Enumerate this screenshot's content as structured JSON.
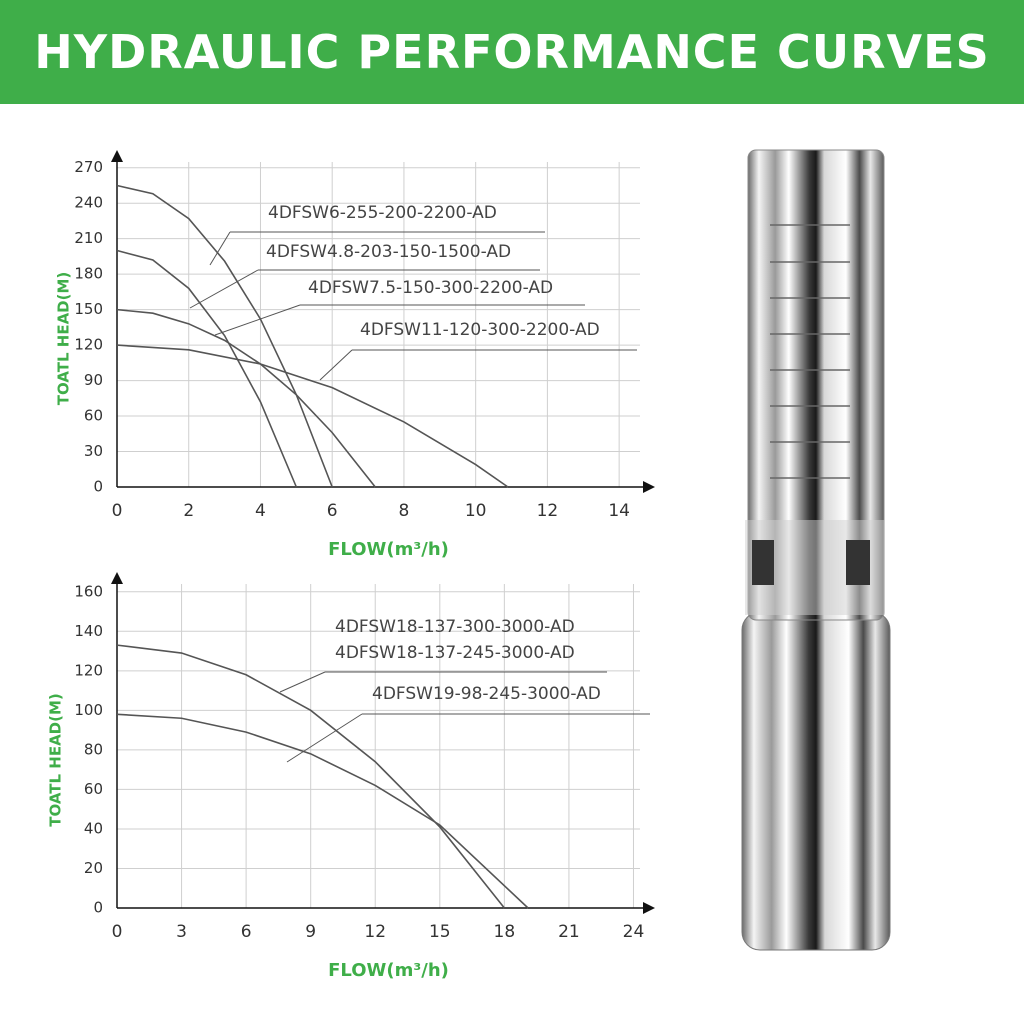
{
  "header": {
    "title": "HYDRAULIC PERFORMANCE CURVES"
  },
  "chart_data": [
    {
      "type": "line",
      "x_label": "FLOW(m³/h)",
      "y_label": "TOATL HEAD(M)",
      "xlim": [
        0,
        15
      ],
      "ylim": [
        0,
        285
      ],
      "xticks": [
        0,
        2,
        4,
        6,
        8,
        10,
        12,
        14
      ],
      "yticks": [
        0,
        30,
        60,
        90,
        120,
        150,
        180,
        210,
        240,
        270
      ],
      "grid": true,
      "series": [
        {
          "name": "4DFSW6-255-200-2200-AD",
          "color": "#555555",
          "x": [
            0,
            1,
            2,
            3,
            4,
            5,
            6
          ],
          "values": [
            255,
            248,
            227,
            191,
            142,
            78,
            0
          ]
        },
        {
          "name": "4DFSW4.8-203-150-1500-AD",
          "color": "#555555",
          "x": [
            0,
            1,
            2,
            3,
            4,
            5
          ],
          "values": [
            200,
            192,
            168,
            128,
            72,
            0
          ]
        },
        {
          "name": "4DFSW7.5-150-300-2200-AD",
          "color": "#555555",
          "x": [
            0,
            1,
            2,
            3,
            4,
            5,
            6,
            7.2
          ],
          "values": [
            150,
            147,
            138,
            124,
            104,
            78,
            46,
            0
          ]
        },
        {
          "name": "4DFSW11-120-300-2200-AD",
          "color": "#555555",
          "x": [
            0,
            2,
            4,
            6,
            8,
            10,
            10.9
          ],
          "values": [
            120,
            116,
            104,
            84,
            55,
            19,
            0
          ]
        }
      ]
    },
    {
      "type": "line",
      "x_label": "FLOW(m³/h)",
      "y_label": "TOATL HEAD(M)",
      "xlim": [
        0,
        25
      ],
      "ylim": [
        0,
        170
      ],
      "xticks": [
        0,
        3,
        6,
        9,
        12,
        15,
        18,
        21,
        24
      ],
      "yticks": [
        0,
        20,
        40,
        60,
        80,
        100,
        120,
        140,
        160
      ],
      "grid": true,
      "annotations": [
        "4DFSW18-137-245-3000-AD"
      ],
      "series": [
        {
          "name": "4DFSW18-137-300-3000-AD",
          "color": "#555555",
          "x": [
            0,
            3,
            6,
            9,
            12,
            15,
            18
          ],
          "values": [
            133,
            129,
            118,
            100,
            74,
            41,
            0
          ]
        },
        {
          "name": "4DFSW19-98-245-3000-AD",
          "color": "#555555",
          "x": [
            0,
            3,
            6,
            9,
            12,
            15,
            19.1
          ],
          "values": [
            98,
            96,
            89,
            78,
            62,
            42,
            0
          ]
        }
      ]
    }
  ]
}
